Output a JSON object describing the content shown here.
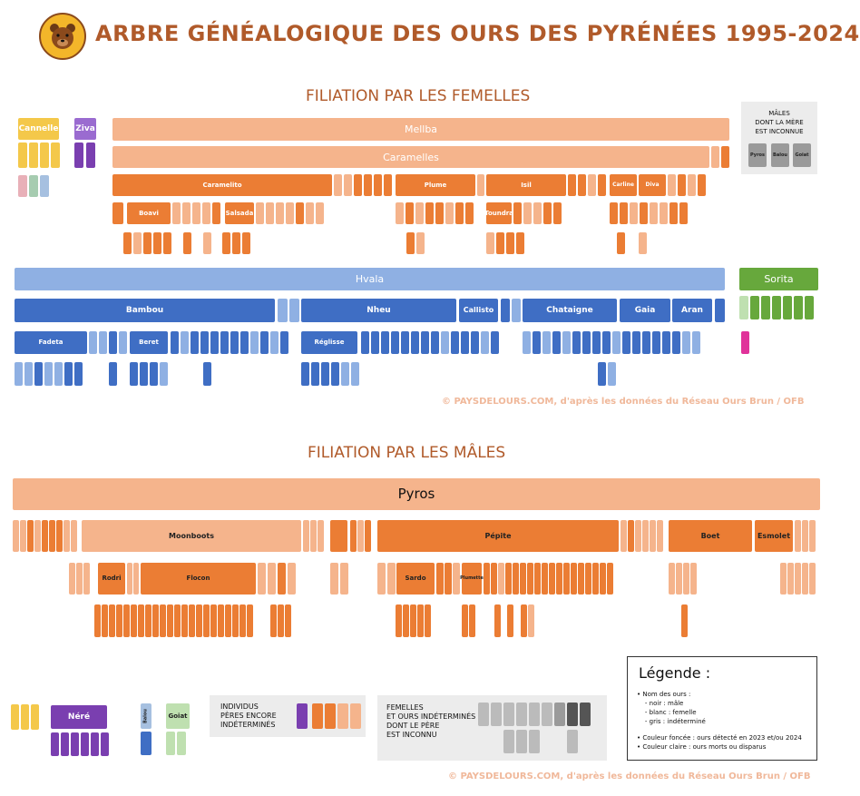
{
  "header": {
    "title": "ARBRE GÉNÉALOGIQUE DES OURS DES PYRÉNÉES 1995-2024"
  },
  "colors": {
    "male_fonce": "#eb7d34",
    "female_clair": "#f5b48c",
    "female_fonce_bleu": "#3f6ec4",
    "bleu_clair": "#8fb0e3",
    "vert": "#67a83c",
    "violet": "#7a3fb0",
    "rose": "#e0329a",
    "jaune": "#f4c84a",
    "gris": "#9a9a9a"
  },
  "females_section": {
    "title": "FILIATION PAR LES FEMELLES",
    "mellba": "Mellba",
    "caramelles": "Caramelles",
    "caramelles_row": [
      "Caramelito",
      "Plume",
      "Isil",
      "Carline",
      "Diva"
    ],
    "caramelles_row3": [
      "Boavi",
      "Salsada",
      "Toundra"
    ],
    "hvala": "Hvala",
    "sorita": "Sorita",
    "hvala_row": [
      "Bambou",
      "Nheu",
      "Callisto",
      "Chataigne",
      "Gaia",
      "Aran"
    ],
    "hvala_row3": [
      "Fadeta",
      "Beret",
      "Réglisse"
    ],
    "top_left": [
      "Cannelle",
      "Ziva"
    ],
    "males_unknown_mother": "MÂLES\nDONT LA MÈRE\nEST INCONNUE",
    "males_unknown_list": [
      "Pyros",
      "Balou",
      "Goiat"
    ],
    "credit": "© PAYSDELOURS.COM,  d'après les données du Réseau Ours Brun / OFB"
  },
  "males_section": {
    "title": "FILIATION PAR LES MÂLES",
    "pyros": "Pyros",
    "pyros_row": [
      "Moonboots",
      "Pépite",
      "Boet",
      "Esmolet"
    ],
    "pyros_row3": [
      "Rodri",
      "Flocon",
      "Sardo",
      "Plumette"
    ],
    "nere": "Néré",
    "goiat": "Goiat",
    "balou": "Balou",
    "indiv_label": "INDIVIDUS\nPÈRES ENCORE\nINDÉTERMINÉS",
    "unknown_father_label": "FEMELLES\nET OURS INDÉTERMINÉS\nDONT LE PÈRE\nEST INCONNU",
    "credit": "© PAYSDELOURS.COM,  d'après les données du Réseau Ours Brun / OFB"
  },
  "legend": {
    "title": "Légende :",
    "items": "• Nom des ours :\n    - noir : mâle\n    - blanc : femelle\n    - gris : indéterminé",
    "items2": "• Couleur foncée : ours détecté en 2023 et/ou 2024\n• Couleur claire : ours morts ou disparus"
  }
}
